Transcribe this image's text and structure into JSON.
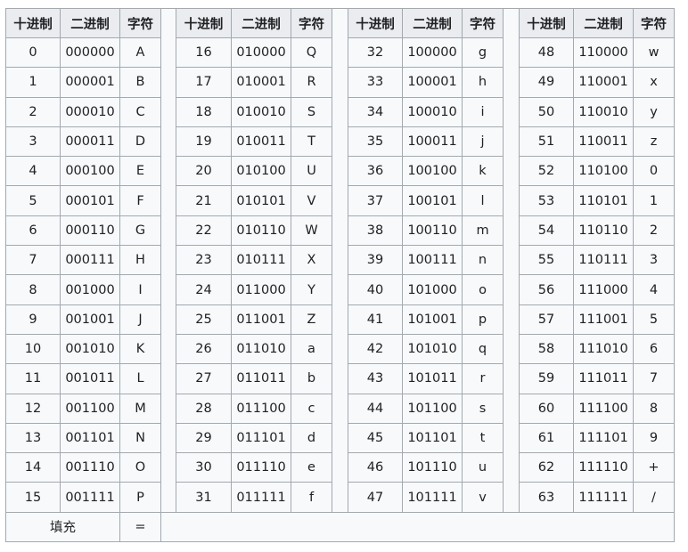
{
  "headers": [
    "十进制",
    "二进制",
    "字符"
  ],
  "entries": [
    [
      "0",
      "000000",
      "A"
    ],
    [
      "1",
      "000001",
      "B"
    ],
    [
      "2",
      "000010",
      "C"
    ],
    [
      "3",
      "000011",
      "D"
    ],
    [
      "4",
      "000100",
      "E"
    ],
    [
      "5",
      "000101",
      "F"
    ],
    [
      "6",
      "000110",
      "G"
    ],
    [
      "7",
      "000111",
      "H"
    ],
    [
      "8",
      "001000",
      "I"
    ],
    [
      "9",
      "001001",
      "J"
    ],
    [
      "10",
      "001010",
      "K"
    ],
    [
      "11",
      "001011",
      "L"
    ],
    [
      "12",
      "001100",
      "M"
    ],
    [
      "13",
      "001101",
      "N"
    ],
    [
      "14",
      "001110",
      "O"
    ],
    [
      "15",
      "001111",
      "P"
    ],
    [
      "16",
      "010000",
      "Q"
    ],
    [
      "17",
      "010001",
      "R"
    ],
    [
      "18",
      "010010",
      "S"
    ],
    [
      "19",
      "010011",
      "T"
    ],
    [
      "20",
      "010100",
      "U"
    ],
    [
      "21",
      "010101",
      "V"
    ],
    [
      "22",
      "010110",
      "W"
    ],
    [
      "23",
      "010111",
      "X"
    ],
    [
      "24",
      "011000",
      "Y"
    ],
    [
      "25",
      "011001",
      "Z"
    ],
    [
      "26",
      "011010",
      "a"
    ],
    [
      "27",
      "011011",
      "b"
    ],
    [
      "28",
      "011100",
      "c"
    ],
    [
      "29",
      "011101",
      "d"
    ],
    [
      "30",
      "011110",
      "e"
    ],
    [
      "31",
      "011111",
      "f"
    ],
    [
      "32",
      "100000",
      "g"
    ],
    [
      "33",
      "100001",
      "h"
    ],
    [
      "34",
      "100010",
      "i"
    ],
    [
      "35",
      "100011",
      "j"
    ],
    [
      "36",
      "100100",
      "k"
    ],
    [
      "37",
      "100101",
      "l"
    ],
    [
      "38",
      "100110",
      "m"
    ],
    [
      "39",
      "100111",
      "n"
    ],
    [
      "40",
      "101000",
      "o"
    ],
    [
      "41",
      "101001",
      "p"
    ],
    [
      "42",
      "101010",
      "q"
    ],
    [
      "43",
      "101011",
      "r"
    ],
    [
      "44",
      "101100",
      "s"
    ],
    [
      "45",
      "101101",
      "t"
    ],
    [
      "46",
      "101110",
      "u"
    ],
    [
      "47",
      "101111",
      "v"
    ],
    [
      "48",
      "110000",
      "w"
    ],
    [
      "49",
      "110001",
      "x"
    ],
    [
      "50",
      "110010",
      "y"
    ],
    [
      "51",
      "110011",
      "z"
    ],
    [
      "52",
      "110100",
      "0"
    ],
    [
      "53",
      "110101",
      "1"
    ],
    [
      "54",
      "110110",
      "2"
    ],
    [
      "55",
      "110111",
      "3"
    ],
    [
      "56",
      "111000",
      "4"
    ],
    [
      "57",
      "111001",
      "5"
    ],
    [
      "58",
      "111010",
      "6"
    ],
    [
      "59",
      "111011",
      "7"
    ],
    [
      "60",
      "111100",
      "8"
    ],
    [
      "61",
      "111101",
      "9"
    ],
    [
      "62",
      "111110",
      "+"
    ],
    [
      "63",
      "111111",
      "/"
    ]
  ],
  "padding": {
    "label": "填充",
    "char": "="
  },
  "colors": {
    "header_bg": "#eaecf0",
    "cell_bg": "#f8f9fa",
    "border": "#a2a9b1",
    "text": "#202122"
  }
}
